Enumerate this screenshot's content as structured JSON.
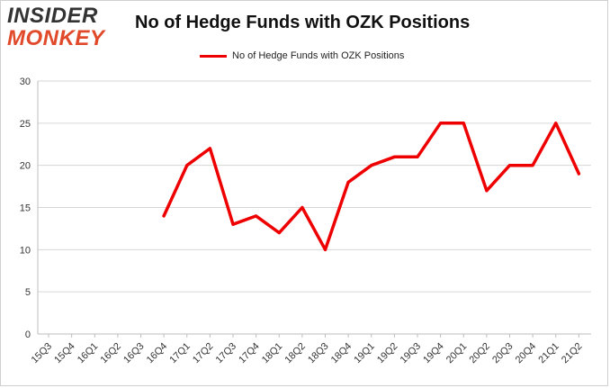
{
  "logo": {
    "top_text": "INSIDER",
    "bottom_text": "MONKEY"
  },
  "chart_data": {
    "type": "line",
    "title": "No of Hedge Funds with OZK Positions",
    "xlabel": "",
    "ylabel": "",
    "categories": [
      "15Q3",
      "15Q4",
      "16Q1",
      "16Q2",
      "16Q3",
      "16Q4",
      "17Q1",
      "17Q2",
      "17Q3",
      "17Q4",
      "18Q1",
      "18Q2",
      "18Q3",
      "18Q4",
      "19Q1",
      "19Q2",
      "19Q3",
      "19Q4",
      "20Q1",
      "20Q2",
      "20Q3",
      "20Q4",
      "21Q1",
      "21Q2"
    ],
    "series": [
      {
        "name": "No of Hedge Funds with OZK Positions",
        "color": "#ee0000",
        "values": [
          null,
          null,
          null,
          null,
          null,
          14,
          20,
          22,
          13,
          14,
          12,
          15,
          10,
          18,
          20,
          21,
          21,
          25,
          25,
          17,
          20,
          20,
          25,
          19
        ]
      }
    ],
    "ylim": [
      0,
      30
    ],
    "yticks": [
      0,
      5,
      10,
      15,
      20,
      25,
      30
    ],
    "grid": true,
    "legend_position": "top-center"
  }
}
